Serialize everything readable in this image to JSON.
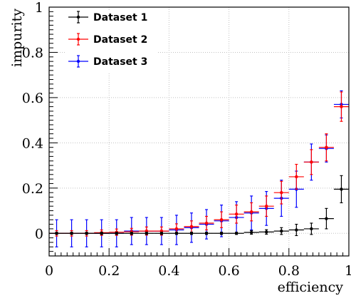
{
  "chart_data": {
    "type": "scatter",
    "title": "",
    "xlabel": "efficiency",
    "ylabel": "impurity",
    "xlim": [
      0,
      1
    ],
    "ylim": [
      -0.1,
      1
    ],
    "grid": true,
    "legend_position": "top-left",
    "x_ticks": [
      "0",
      "0.2",
      "0.4",
      "0.6",
      "0.8",
      "1"
    ],
    "y_ticks": [
      "0",
      "0.2",
      "0.4",
      "0.6",
      "0.8",
      "1"
    ],
    "x_tick_values": [
      0,
      0.2,
      0.4,
      0.6,
      0.8,
      1
    ],
    "y_tick_values": [
      0,
      0.2,
      0.4,
      0.6,
      0.8,
      1
    ],
    "bin_half_width": 0.025,
    "x": [
      0.025,
      0.075,
      0.125,
      0.175,
      0.225,
      0.275,
      0.325,
      0.375,
      0.425,
      0.475,
      0.525,
      0.575,
      0.625,
      0.675,
      0.725,
      0.775,
      0.825,
      0.875,
      0.925,
      0.975
    ],
    "series": [
      {
        "name": "Dataset 1",
        "color": "#000000",
        "values": [
          0,
          0,
          0,
          0,
          0,
          0,
          0,
          0,
          0,
          0,
          0,
          0,
          0,
          0.004,
          0.006,
          0.01,
          0.015,
          0.02,
          0.065,
          0.195
        ],
        "errors": [
          0.005,
          0.005,
          0.005,
          0.005,
          0.005,
          0.005,
          0.005,
          0.005,
          0.005,
          0.005,
          0.005,
          0.005,
          0.005,
          0.008,
          0.01,
          0.015,
          0.025,
          0.025,
          0.045,
          0.06
        ]
      },
      {
        "name": "Dataset 2",
        "color": "#ff0000",
        "values": [
          0,
          0,
          0,
          0.003,
          0.005,
          0.007,
          0.01,
          0.01,
          0.02,
          0.03,
          0.045,
          0.06,
          0.085,
          0.095,
          0.12,
          0.18,
          0.25,
          0.315,
          0.38,
          0.56
        ],
        "errors": [
          0.012,
          0.012,
          0.012,
          0.012,
          0.014,
          0.015,
          0.018,
          0.018,
          0.022,
          0.025,
          0.03,
          0.035,
          0.04,
          0.04,
          0.045,
          0.05,
          0.055,
          0.055,
          0.06,
          0.065
        ]
      },
      {
        "name": "Dataset 3",
        "color": "#0000ff",
        "values": [
          0,
          0,
          0,
          0,
          0,
          0.01,
          0.01,
          0.01,
          0.015,
          0.025,
          0.04,
          0.055,
          0.07,
          0.09,
          0.11,
          0.155,
          0.195,
          0.315,
          0.375,
          0.57
        ],
        "errors": [
          0.06,
          0.06,
          0.06,
          0.06,
          0.06,
          0.06,
          0.06,
          0.06,
          0.065,
          0.065,
          0.065,
          0.07,
          0.07,
          0.075,
          0.075,
          0.08,
          0.08,
          0.08,
          0.06,
          0.06
        ]
      }
    ]
  }
}
